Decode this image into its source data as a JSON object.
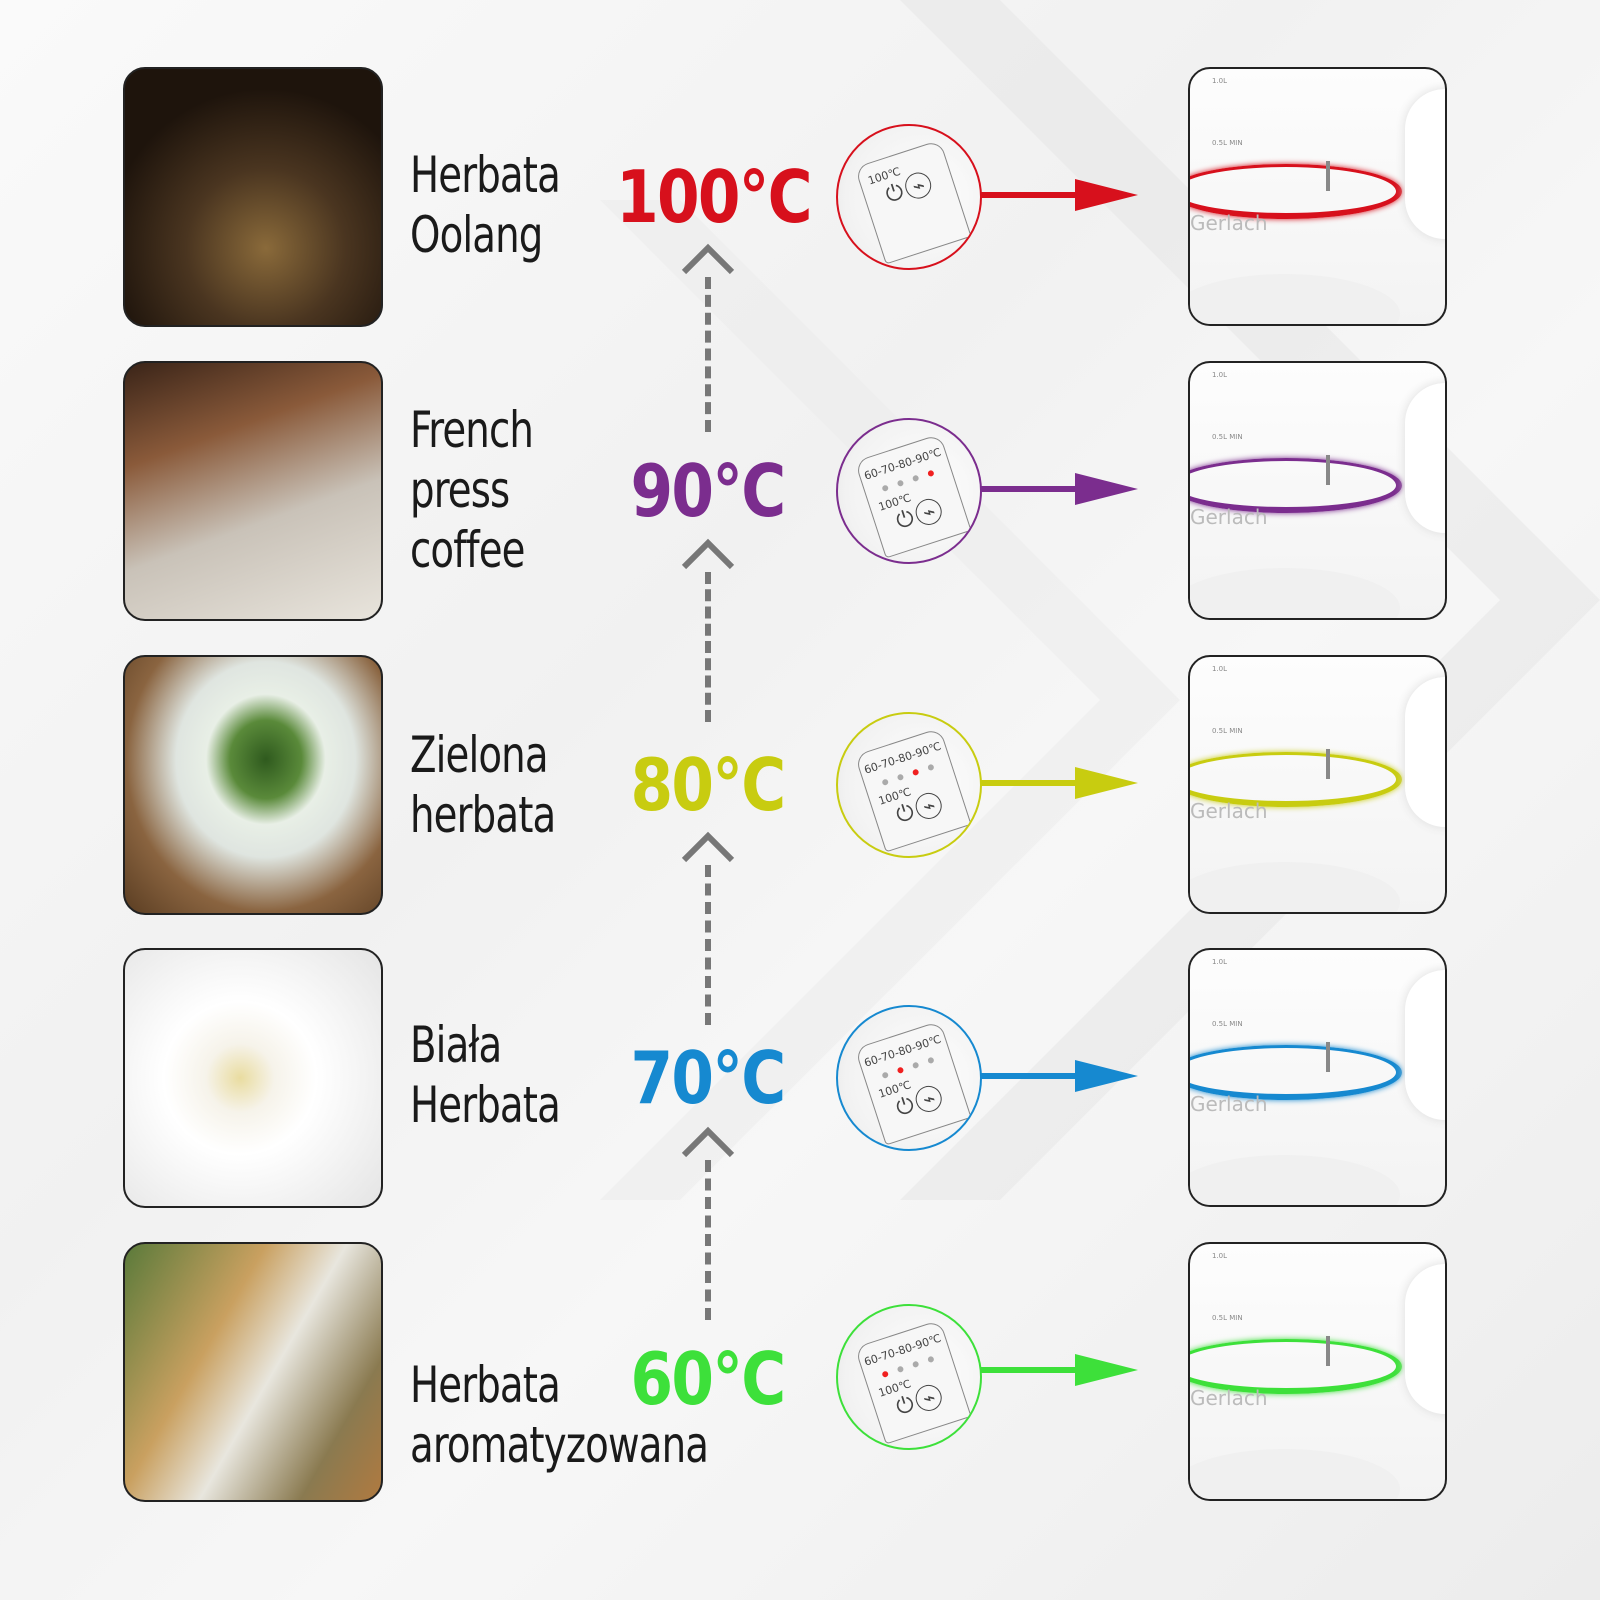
{
  "rows": [
    {
      "label_lines": [
        "Herbata",
        "Oolang"
      ],
      "temp": "100°C",
      "color": "#d7101c",
      "panel": {
        "scale": "",
        "power": "100℃"
      }
    },
    {
      "label_lines": [
        "French",
        "press",
        "coffee"
      ],
      "temp": "90°C",
      "color": "#7b2d8e",
      "panel": {
        "scale": "60-70-80-90℃",
        "power": "100℃"
      }
    },
    {
      "label_lines": [
        "Zielona",
        "herbata"
      ],
      "temp": "80°C",
      "color": "#c8cc10",
      "panel": {
        "scale": "60-70-80-90℃",
        "power": "100℃"
      }
    },
    {
      "label_lines": [
        "Biała",
        "Herbata"
      ],
      "temp": "70°C",
      "color": "#1689d0",
      "panel": {
        "scale": "60-70-80-90℃",
        "power": "100℃"
      }
    },
    {
      "label_lines": [
        "Herbata",
        "aromatyzowana"
      ],
      "temp": "60°C",
      "color": "#3de03a",
      "panel": {
        "scale": "60-70-80-90℃",
        "power": "100℃"
      }
    }
  ],
  "kettle": {
    "brand": "Gerlach",
    "max": "1.0L",
    "min": "0.5L MIN"
  },
  "icons": {
    "power": "power-icon",
    "keep-warm": "keep-warm-icon"
  }
}
